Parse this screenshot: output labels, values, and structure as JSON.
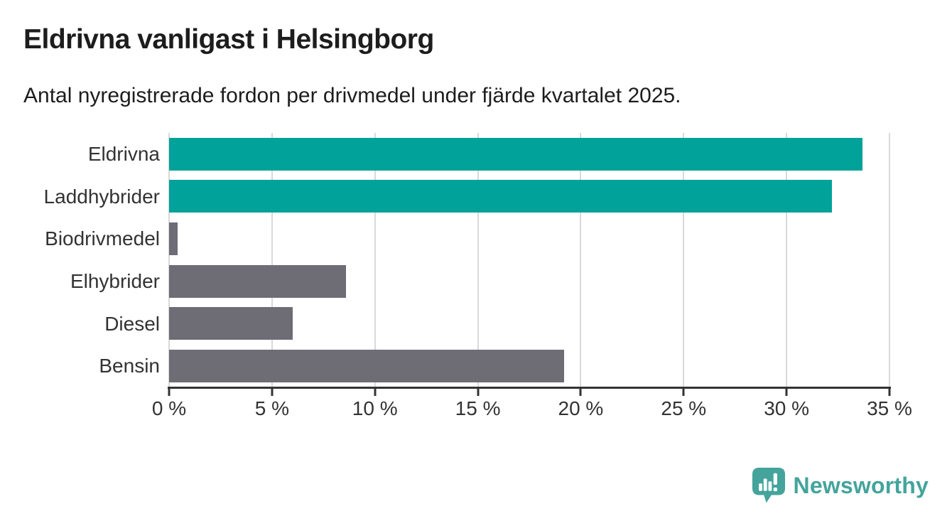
{
  "header": {
    "title": "Eldrivna vanligast i Helsingborg",
    "subtitle": "Antal nyregistrerade fordon per drivmedel under fjärde kvartalet 2025."
  },
  "chart_data": {
    "type": "bar",
    "orientation": "horizontal",
    "title": "Eldrivna vanligast i Helsingborg",
    "subtitle": "Antal nyregistrerade fordon per drivmedel under fjärde kvartalet 2025.",
    "categories": [
      "Eldrivna",
      "Laddhybrider",
      "Biodrivmedel",
      "Elhybrider",
      "Diesel",
      "Bensin"
    ],
    "values": [
      33.7,
      32.2,
      0.4,
      8.6,
      6.0,
      19.2
    ],
    "unit": "%",
    "bar_colors": [
      "#00a29a",
      "#00a29a",
      "#6e6d76",
      "#6e6d76",
      "#6e6d76",
      "#6e6d76"
    ],
    "highlight_color": "#00a29a",
    "default_color": "#6e6d76",
    "xlabel": "",
    "ylabel": "",
    "xlim": [
      0,
      35
    ],
    "x_ticks": [
      0,
      5,
      10,
      15,
      20,
      25,
      30,
      35
    ],
    "x_tick_labels": [
      "0 %",
      "5 %",
      "10 %",
      "15 %",
      "20 %",
      "25 %",
      "30 %",
      "35 %"
    ],
    "grid": "vertical-only",
    "legend": "none"
  },
  "footer": {
    "brand": "Newsworthy",
    "brand_color": "#44a49c"
  },
  "colors": {
    "background": "#ffffff",
    "teal_bar": "#00a29a",
    "gray_bar": "#6e6d76",
    "gridline": "#d9d9d9",
    "axis": "#333333",
    "text": "#1d1d1d",
    "brand_teal": "#44a49c"
  }
}
